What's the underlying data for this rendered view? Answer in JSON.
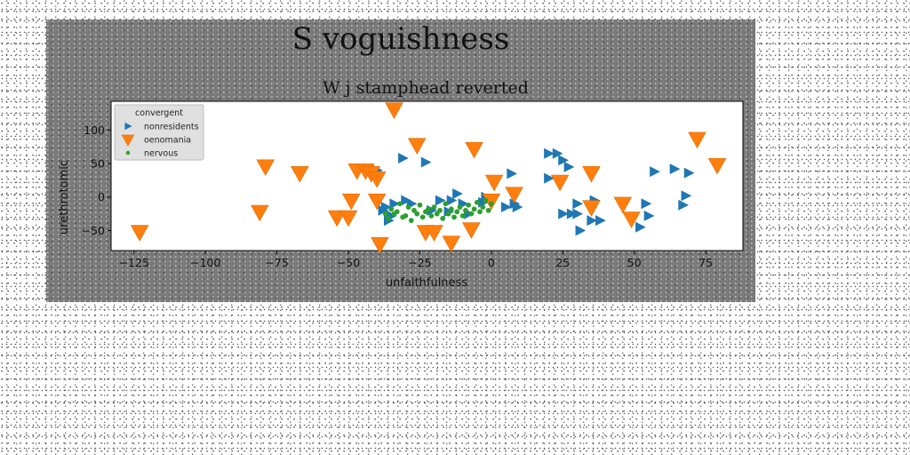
{
  "chart_data": {
    "type": "scatter",
    "suptitle": "S voguishness",
    "title": "W j stamphead reverted",
    "xlabel": "unfaithfulness",
    "ylabel": "urethrotomic",
    "xlim": [
      -133,
      88
    ],
    "ylim": [
      -80,
      143
    ],
    "xticks": [
      -125,
      -100,
      -75,
      -50,
      -25,
      0,
      25,
      50,
      75
    ],
    "xtick_labels": [
      "−125",
      "−100",
      "−75",
      "−50",
      "−25",
      "0",
      "25",
      "50",
      "75"
    ],
    "yticks": [
      -50,
      0,
      50,
      100
    ],
    "ytick_labels": [
      "−50",
      "0",
      "50",
      "100"
    ],
    "grid": false,
    "legend": {
      "title": "convergent",
      "placement": "top-left"
    },
    "series": [
      {
        "name": "nonresidents",
        "marker": "triangle-right",
        "color": "#1f77b4",
        "points": [
          [
            -40,
            40
          ],
          [
            -38,
            -20
          ],
          [
            -37,
            -15
          ],
          [
            -36,
            -35
          ],
          [
            -35,
            -28
          ],
          [
            -34,
            -10
          ],
          [
            -31,
            58
          ],
          [
            -30,
            -5
          ],
          [
            -28,
            -10
          ],
          [
            -23,
            52
          ],
          [
            -21,
            -20
          ],
          [
            -18,
            -5
          ],
          [
            -15,
            -22
          ],
          [
            -14,
            -5
          ],
          [
            -12,
            5
          ],
          [
            -10,
            -10
          ],
          [
            -8,
            -25
          ],
          [
            -3,
            -8
          ],
          [
            -2,
            0
          ],
          [
            5,
            -15
          ],
          [
            7,
            35
          ],
          [
            8,
            -10
          ],
          [
            9,
            -15
          ],
          [
            20,
            28
          ],
          [
            20,
            65
          ],
          [
            23,
            65
          ],
          [
            25,
            -25
          ],
          [
            25,
            55
          ],
          [
            27,
            45
          ],
          [
            28,
            -25
          ],
          [
            30,
            -10
          ],
          [
            30,
            -25
          ],
          [
            31,
            -50
          ],
          [
            35,
            -35
          ],
          [
            36,
            -5
          ],
          [
            38,
            -35
          ],
          [
            52,
            -45
          ],
          [
            54,
            -10
          ],
          [
            55,
            -28
          ],
          [
            57,
            38
          ],
          [
            64,
            42
          ],
          [
            67,
            -12
          ],
          [
            68,
            2
          ],
          [
            69,
            36
          ]
        ]
      },
      {
        "name": "oenomania",
        "marker": "triangle-down",
        "color": "#ff7f0e",
        "points": [
          [
            -123,
            -52
          ],
          [
            -81,
            -22
          ],
          [
            -79,
            46
          ],
          [
            -67,
            36
          ],
          [
            -54,
            -30
          ],
          [
            -50,
            -30
          ],
          [
            -49,
            -5
          ],
          [
            -47,
            40
          ],
          [
            -44,
            40
          ],
          [
            -42,
            36
          ],
          [
            -40,
            28
          ],
          [
            -40,
            -5
          ],
          [
            -39,
            -70
          ],
          [
            -34,
            131
          ],
          [
            -26,
            78
          ],
          [
            -23,
            -52
          ],
          [
            -20,
            -52
          ],
          [
            -14,
            -68
          ],
          [
            -7,
            -48
          ],
          [
            -6,
            72
          ],
          [
            0,
            -5
          ],
          [
            1,
            23
          ],
          [
            8,
            5
          ],
          [
            24,
            23
          ],
          [
            35,
            -15
          ],
          [
            35,
            36
          ],
          [
            46,
            -10
          ],
          [
            49,
            -32
          ],
          [
            72,
            87
          ],
          [
            79,
            48
          ]
        ]
      },
      {
        "name": "nervous",
        "marker": "circle",
        "color": "#2ca02c",
        "points": [
          [
            -37,
            -25
          ],
          [
            -36,
            -32
          ],
          [
            -35,
            -18
          ],
          [
            -34,
            -25
          ],
          [
            -33,
            -22
          ],
          [
            -32,
            -10
          ],
          [
            -31,
            -30
          ],
          [
            -30,
            -28
          ],
          [
            -29,
            -15
          ],
          [
            -28,
            -35
          ],
          [
            -27,
            -20
          ],
          [
            -26,
            -25
          ],
          [
            -25,
            -12
          ],
          [
            -24,
            -30
          ],
          [
            -23,
            -22
          ],
          [
            -22,
            -18
          ],
          [
            -21,
            -28
          ],
          [
            -20,
            -15
          ],
          [
            -19,
            -25
          ],
          [
            -18,
            -20
          ],
          [
            -17,
            -32
          ],
          [
            -16,
            -10
          ],
          [
            -15,
            -25
          ],
          [
            -14,
            -18
          ],
          [
            -13,
            -30
          ],
          [
            -12,
            -22
          ],
          [
            -11,
            -15
          ],
          [
            -10,
            -28
          ],
          [
            -9,
            -20
          ],
          [
            -8,
            -12
          ],
          [
            -7,
            -25
          ],
          [
            -6,
            -18
          ],
          [
            -5,
            -8
          ],
          [
            -4,
            -22
          ],
          [
            -3,
            -15
          ],
          [
            -2,
            -5
          ],
          [
            -1,
            -20
          ],
          [
            0,
            -10
          ]
        ]
      }
    ]
  }
}
